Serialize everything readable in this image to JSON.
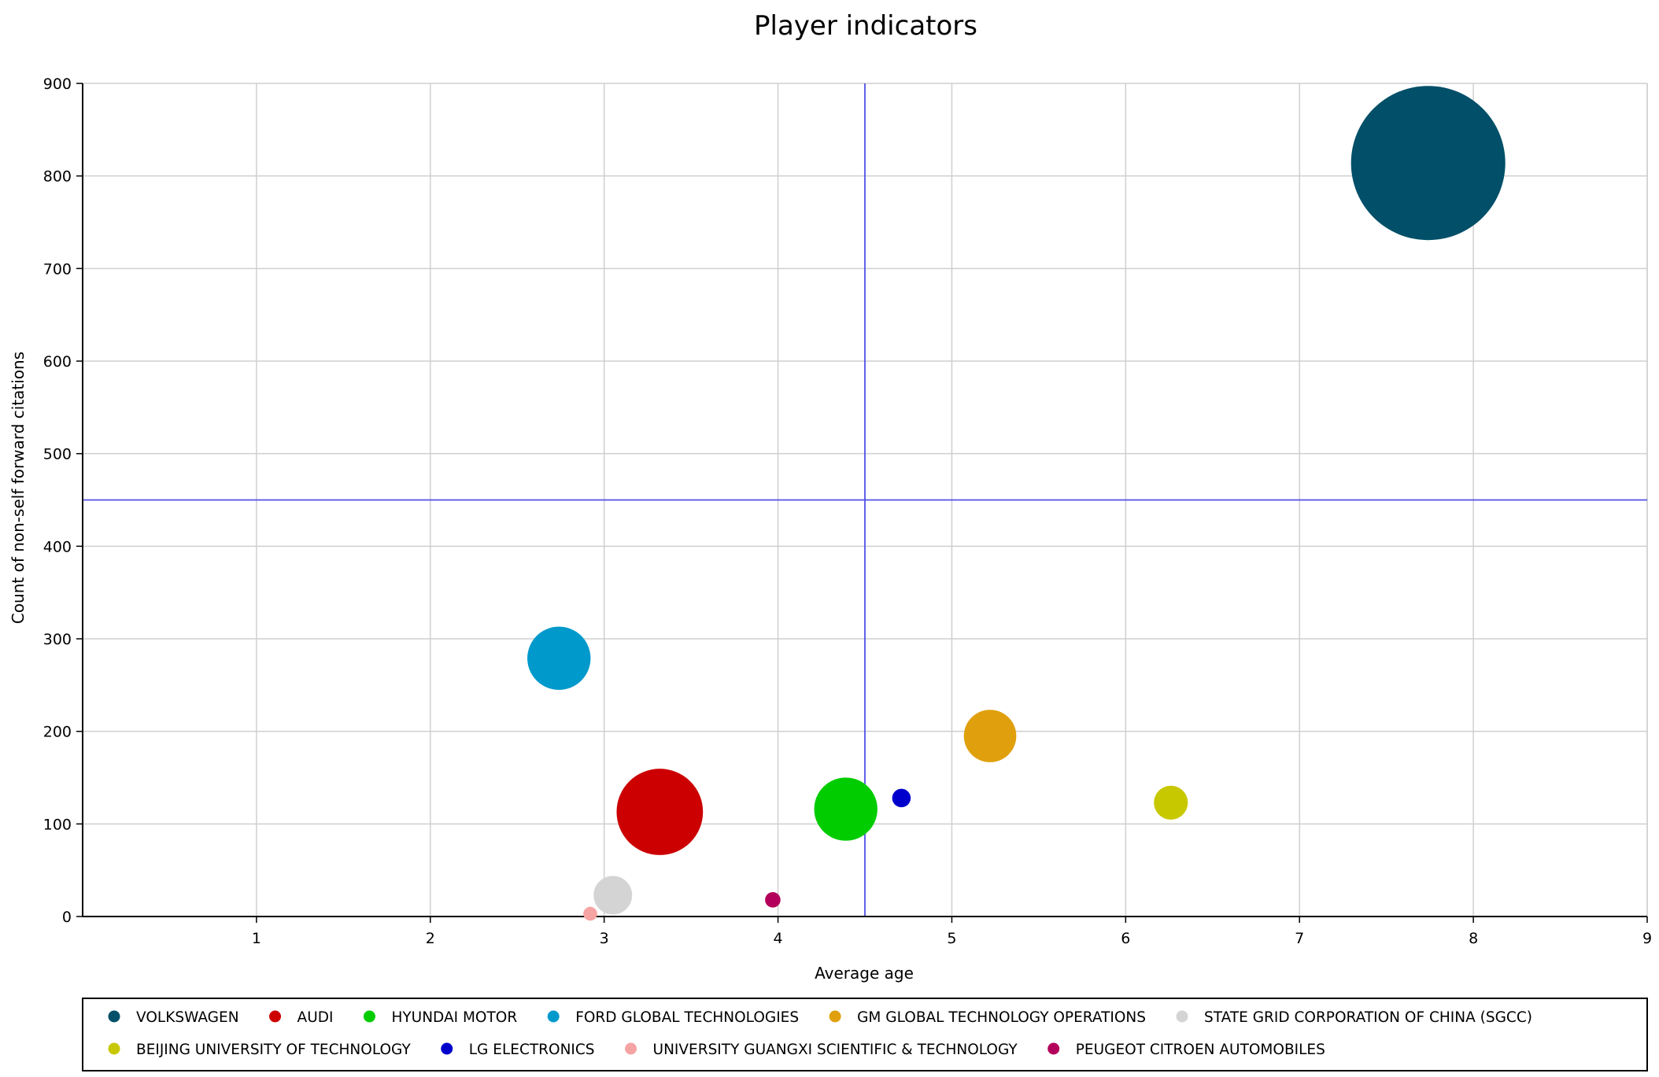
{
  "chart_data": {
    "type": "scatter",
    "title": "Player indicators",
    "xlabel": "Average age",
    "ylabel": "Count of non-self forward citations",
    "xlim": [
      0,
      9
    ],
    "ylim": [
      0,
      900
    ],
    "x_ticks": [
      1,
      2,
      3,
      4,
      5,
      6,
      7,
      8,
      9
    ],
    "y_ticks": [
      0,
      100,
      200,
      300,
      400,
      500,
      600,
      700,
      800,
      900
    ],
    "grid": true,
    "reference_lines": {
      "x": 4.5,
      "y": 450,
      "color": "#5050e6"
    },
    "legend_position": "bottom",
    "series": [
      {
        "name": "VOLKSWAGEN",
        "color": "#014f68",
        "x": 7.74,
        "y": 814,
        "size": 1.0
      },
      {
        "name": "AUDI",
        "color": "#cc0000",
        "x": 3.32,
        "y": 113,
        "size": 0.56
      },
      {
        "name": "HYUNDAI MOTOR",
        "color": "#00cc00",
        "x": 4.39,
        "y": 116,
        "size": 0.41
      },
      {
        "name": "FORD GLOBAL TECHNOLOGIES",
        "color": "#0099cc",
        "x": 2.74,
        "y": 279,
        "size": 0.41
      },
      {
        "name": "GM GLOBAL TECHNOLOGY OPERATIONS",
        "color": "#e0a00e",
        "x": 5.22,
        "y": 195,
        "size": 0.34
      },
      {
        "name": "STATE GRID CORPORATION OF CHINA (SGCC)",
        "color": "#d4d4d4",
        "x": 3.05,
        "y": 23,
        "size": 0.25
      },
      {
        "name": "BEIJING UNIVERSITY OF TECHNOLOGY",
        "color": "#c8c800",
        "x": 6.26,
        "y": 123,
        "size": 0.22
      },
      {
        "name": "LG ELECTRONICS",
        "color": "#0000cc",
        "x": 4.71,
        "y": 128,
        "size": 0.12
      },
      {
        "name": "UNIVERSITY GUANGXI SCIENTIFIC & TECHNOLOGY",
        "color": "#f5a3a3",
        "x": 2.92,
        "y": 3,
        "size": 0.09
      },
      {
        "name": "PEUGEOT CITROEN AUTOMOBILES",
        "color": "#b3005a",
        "x": 3.97,
        "y": 18,
        "size": 0.1
      }
    ]
  }
}
